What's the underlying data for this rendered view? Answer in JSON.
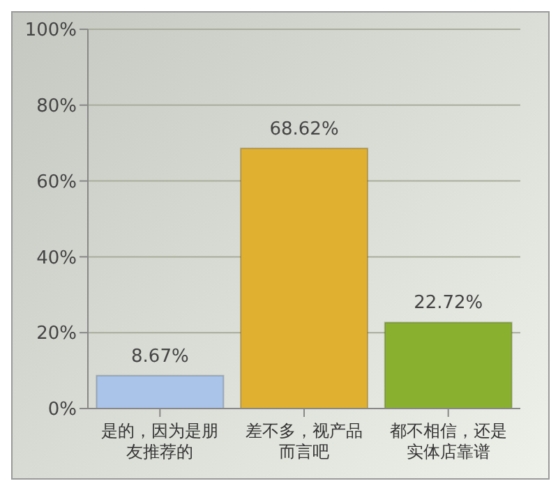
{
  "chart_data": {
    "type": "bar",
    "categories": [
      "是的，因为是朋友推荐的",
      "差不多，视产品而言吧",
      "都不相信，还是实体店靠谱"
    ],
    "values": [
      8.67,
      68.62,
      22.72
    ],
    "colors": [
      "#a9c4e8",
      "#e0b030",
      "#8ab030"
    ],
    "value_labels": [
      "8.67%",
      "68.62%",
      "22.72%"
    ],
    "ylim": [
      0,
      100
    ],
    "yticks": [
      {
        "value": 0,
        "label": "0%"
      },
      {
        "value": 20,
        "label": "20%"
      },
      {
        "value": 40,
        "label": "40%"
      },
      {
        "value": 60,
        "label": "60%"
      },
      {
        "value": 80,
        "label": "80%"
      },
      {
        "value": 100,
        "label": "100%"
      }
    ],
    "grid": "y"
  }
}
